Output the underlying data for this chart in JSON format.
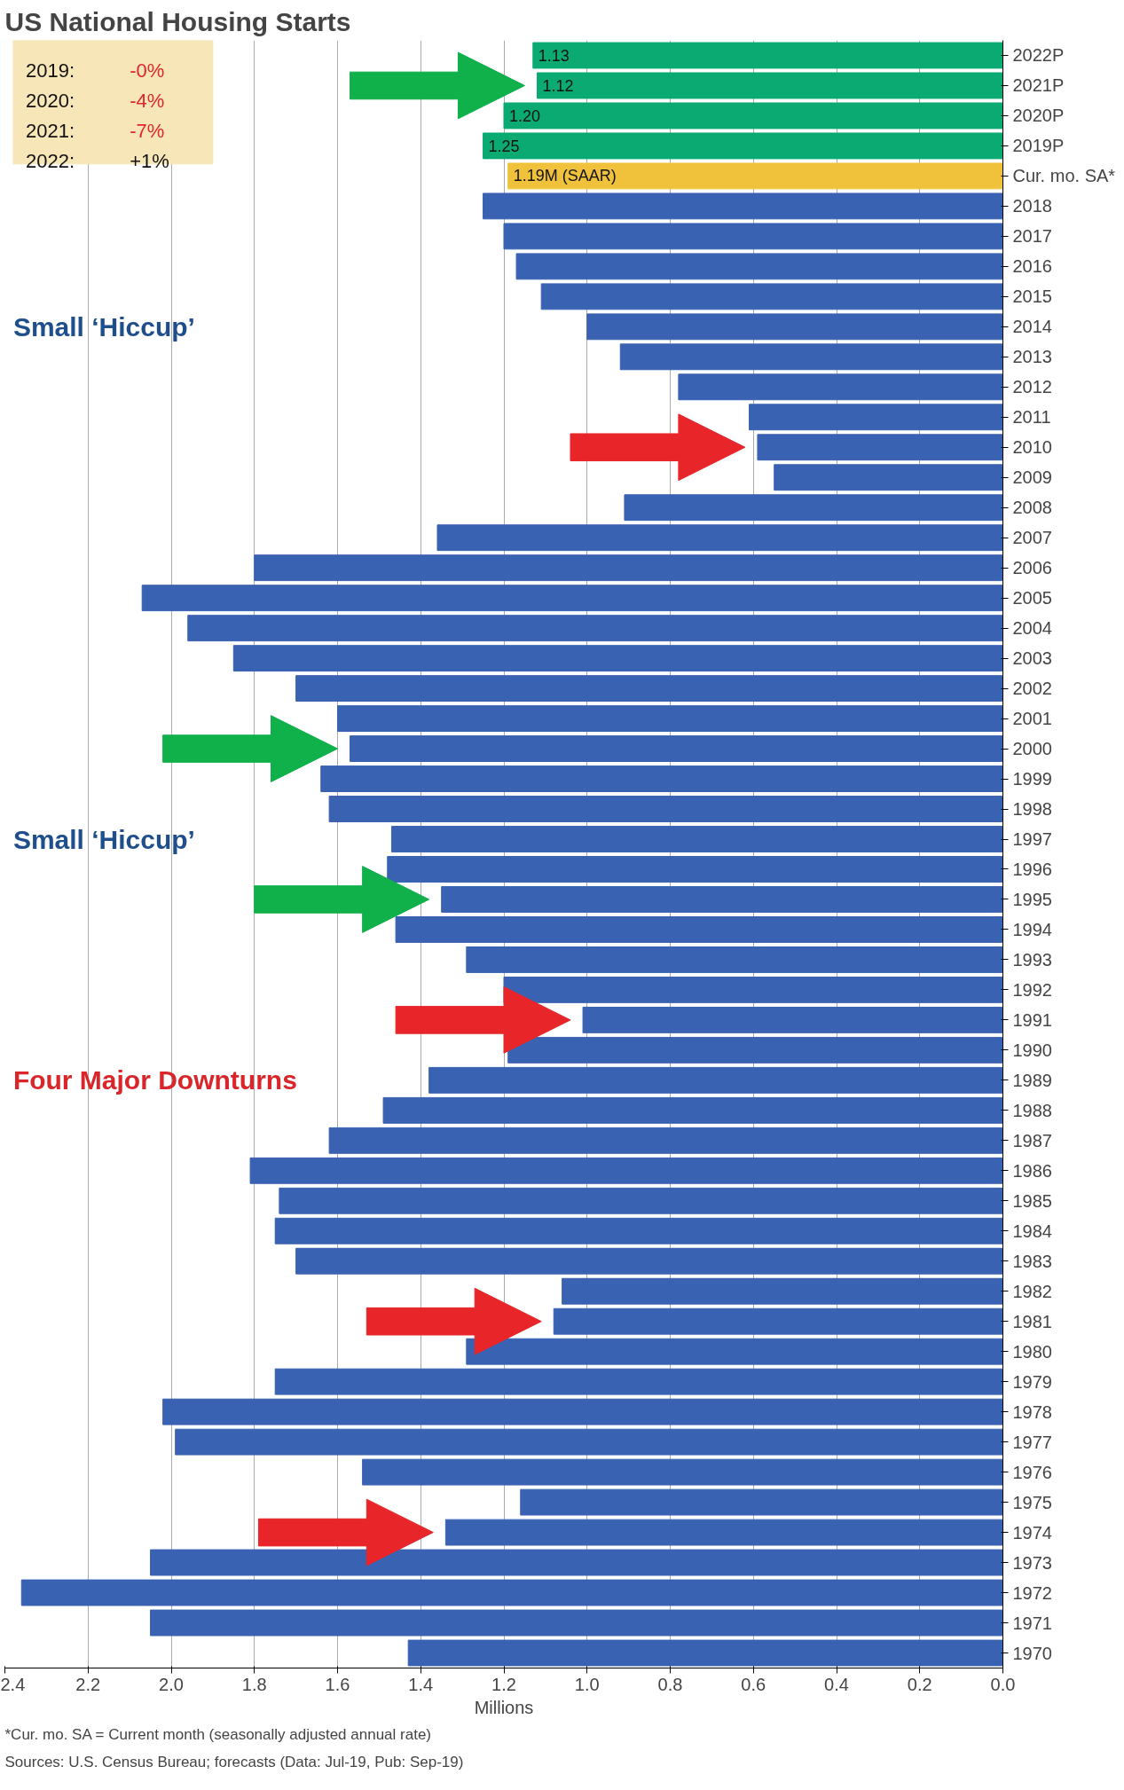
{
  "chart_data": {
    "type": "bar",
    "orientation": "horizontal",
    "title": "US National Housing Starts",
    "xlabel": "Millions",
    "categories": [
      "2022P",
      "2021P",
      "2020P",
      "2019P",
      "Cur. mo. SA*",
      "2018",
      "2017",
      "2016",
      "2015",
      "2014",
      "2013",
      "2012",
      "2011",
      "2010",
      "2009",
      "2008",
      "2007",
      "2006",
      "2005",
      "2004",
      "2003",
      "2002",
      "2001",
      "2000",
      "1999",
      "1998",
      "1997",
      "1996",
      "1995",
      "1994",
      "1993",
      "1992",
      "1991",
      "1990",
      "1989",
      "1988",
      "1987",
      "1986",
      "1985",
      "1984",
      "1983",
      "1982",
      "1981",
      "1980",
      "1979",
      "1978",
      "1977",
      "1976",
      "1975",
      "1974",
      "1973",
      "1972",
      "1971",
      "1970"
    ],
    "values": [
      1.13,
      1.12,
      1.2,
      1.25,
      1.19,
      1.25,
      1.2,
      1.17,
      1.11,
      1.0,
      0.92,
      0.78,
      0.61,
      0.59,
      0.55,
      0.91,
      1.36,
      1.8,
      2.07,
      1.96,
      1.85,
      1.7,
      1.6,
      1.57,
      1.64,
      1.62,
      1.47,
      1.48,
      1.35,
      1.46,
      1.29,
      1.2,
      1.01,
      1.19,
      1.38,
      1.49,
      1.62,
      1.81,
      1.74,
      1.75,
      1.7,
      1.06,
      1.08,
      1.29,
      1.75,
      2.02,
      1.99,
      1.54,
      1.16,
      1.34,
      2.05,
      2.36,
      2.05,
      1.43
    ],
    "colors": [
      "#0aaa72",
      "#0aaa72",
      "#0aaa72",
      "#0aaa72",
      "#f0c23c",
      "#3a62b2",
      "#3a62b2",
      "#3a62b2",
      "#3a62b2",
      "#3a62b2",
      "#3a62b2",
      "#3a62b2",
      "#3a62b2",
      "#3a62b2",
      "#3a62b2",
      "#3a62b2",
      "#3a62b2",
      "#3a62b2",
      "#3a62b2",
      "#3a62b2",
      "#3a62b2",
      "#3a62b2",
      "#3a62b2",
      "#3a62b2",
      "#3a62b2",
      "#3a62b2",
      "#3a62b2",
      "#3a62b2",
      "#3a62b2",
      "#3a62b2",
      "#3a62b2",
      "#3a62b2",
      "#3a62b2",
      "#3a62b2",
      "#3a62b2",
      "#3a62b2",
      "#3a62b2",
      "#3a62b2",
      "#3a62b2",
      "#3a62b2",
      "#3a62b2",
      "#3a62b2",
      "#3a62b2",
      "#3a62b2",
      "#3a62b2",
      "#3a62b2",
      "#3a62b2",
      "#3a62b2",
      "#3a62b2",
      "#3a62b2",
      "#3a62b2",
      "#3a62b2",
      "#3a62b2",
      "#3a62b2"
    ],
    "value_labels": [
      "1.13",
      "1.12",
      "1.20",
      "1.25",
      "1.19M (SAAR)",
      null,
      null,
      null,
      null,
      null,
      null,
      null,
      null,
      null,
      null,
      null,
      null,
      null,
      null,
      null,
      null,
      null,
      null,
      null,
      null,
      null,
      null,
      null,
      null,
      null,
      null,
      null,
      null,
      null,
      null,
      null,
      null,
      null,
      null,
      null,
      null,
      null,
      null,
      null,
      null,
      null,
      null,
      null,
      null,
      null,
      null,
      null,
      null,
      null
    ],
    "xlim": [
      2.4,
      0
    ],
    "xticks": [
      {
        "value": 2.4,
        "label": "2.4"
      },
      {
        "value": 2.2,
        "label": "2.2"
      },
      {
        "value": 2.0,
        "label": "2.0"
      },
      {
        "value": 1.8,
        "label": "1.8"
      },
      {
        "value": 1.6,
        "label": "1.6"
      },
      {
        "value": 1.4,
        "label": "1.4"
      },
      {
        "value": 1.2,
        "label": "1.2"
      },
      {
        "value": 1.0,
        "label": "1.0"
      },
      {
        "value": 0.8,
        "label": "0.8"
      },
      {
        "value": 0.6,
        "label": "0.6"
      },
      {
        "value": 0.4,
        "label": "0.4"
      },
      {
        "value": 0.2,
        "label": "0.2"
      },
      {
        "value": 0,
        "label": "0.0"
      }
    ],
    "grid": "x",
    "annotations": [
      "Four Major Downturns",
      "Small ‘Hiccup’",
      "Small ‘Hiccup’",
      "2019:  -0%",
      "2020:  -4%",
      "2021:  -7%",
      "2022:  +1%",
      "*Cur. mo. SA = Current month (seasonally adjusted annual rate)",
      "Sources: U.S. Census Bureau; forecasts (Data: Jul-19, Pub: Sep-19)"
    ]
  }
}
